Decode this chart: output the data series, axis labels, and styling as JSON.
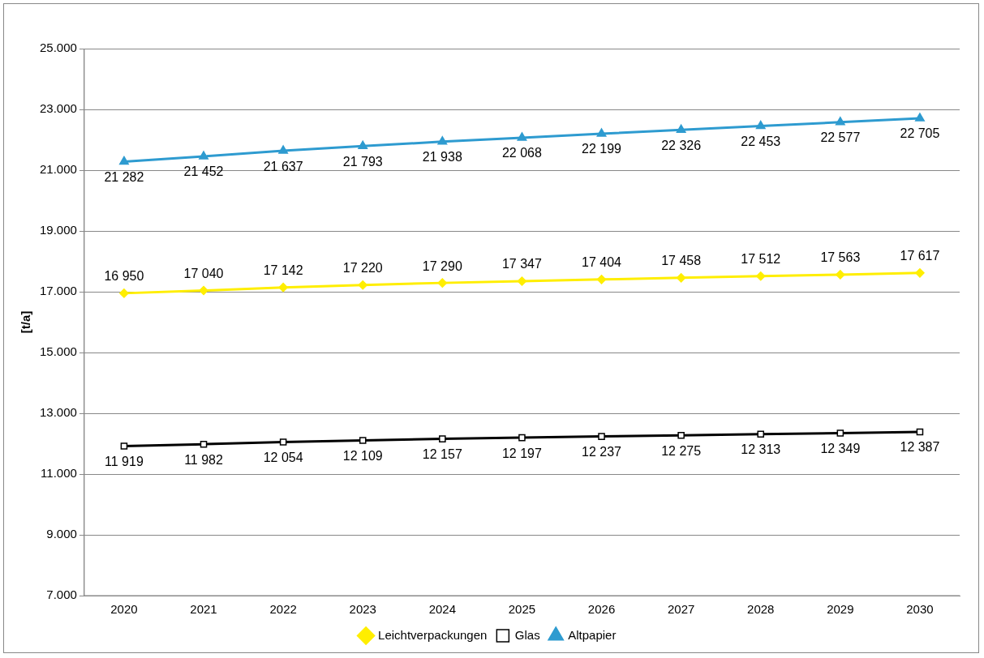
{
  "chart_data": {
    "type": "line",
    "ylabel": "[t/a]",
    "categories": [
      "2020",
      "2021",
      "2022",
      "2023",
      "2024",
      "2025",
      "2026",
      "2027",
      "2028",
      "2029",
      "2030"
    ],
    "series": [
      {
        "name": "Leichtverpackungen",
        "color": "#ffee00",
        "marker": "diamond",
        "values": [
          16950,
          17040,
          17142,
          17220,
          17290,
          17347,
          17404,
          17458,
          17512,
          17563,
          17617
        ],
        "value_labels": [
          "16 950",
          "17 040",
          "17 142",
          "17 220",
          "17 290",
          "17 347",
          "17 404",
          "17 458",
          "17 512",
          "17 563",
          "17 617"
        ]
      },
      {
        "name": "Glas",
        "color": "#000000",
        "marker": "square",
        "values": [
          11919,
          11982,
          12054,
          12109,
          12157,
          12197,
          12237,
          12275,
          12313,
          12349,
          12387
        ],
        "value_labels": [
          "11 919",
          "11 982",
          "12 054",
          "12 109",
          "12 157",
          "12 197",
          "12 237",
          "12 275",
          "12 313",
          "12 349",
          "12 387"
        ]
      },
      {
        "name": "Altpapier",
        "color": "#2e9bd0",
        "marker": "triangle",
        "values": [
          21282,
          21452,
          21637,
          21793,
          21938,
          22068,
          22199,
          22326,
          22453,
          22577,
          22705
        ],
        "value_labels": [
          "21 282",
          "21 452",
          "21 637",
          "21 793",
          "21 938",
          "22 068",
          "22 199",
          "22 326",
          "22 453",
          "22 577",
          "22 705"
        ]
      }
    ],
    "ylim": [
      7000,
      25000
    ],
    "yticks": [
      {
        "value": 7000,
        "label": "7.000"
      },
      {
        "value": 9000,
        "label": "9.000"
      },
      {
        "value": 11000,
        "label": "11.000"
      },
      {
        "value": 13000,
        "label": "13.000"
      },
      {
        "value": 15000,
        "label": "15.000"
      },
      {
        "value": 17000,
        "label": "17.000"
      },
      {
        "value": 19000,
        "label": "19.000"
      },
      {
        "value": 21000,
        "label": "21.000"
      },
      {
        "value": 23000,
        "label": "23.000"
      },
      {
        "value": 25000,
        "label": "25.000"
      }
    ],
    "grid": "y",
    "legend": "bottom"
  }
}
